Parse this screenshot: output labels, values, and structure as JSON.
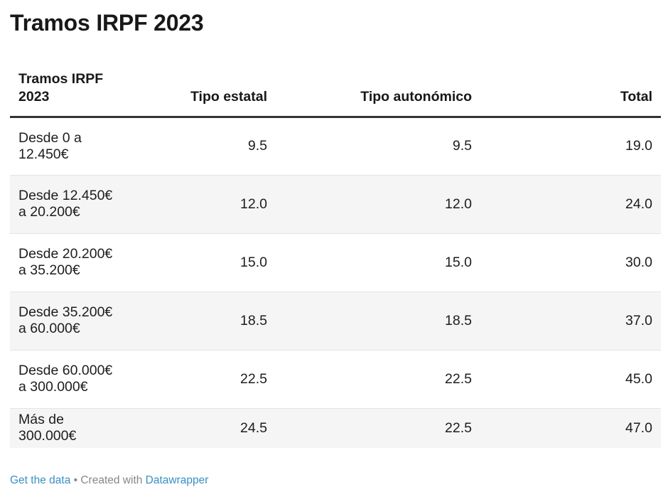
{
  "title": "Tramos IRPF 2023",
  "chart_data": {
    "type": "table",
    "title": "Tramos IRPF 2023",
    "columns": [
      "Tramos IRPF 2023",
      "Tipo estatal",
      "Tipo autonómico",
      "Total"
    ],
    "rows": [
      {
        "tramo": "Desde 0 a 12.450€",
        "estatal": "9.5",
        "autonomico": "9.5",
        "total": "19.0"
      },
      {
        "tramo": "Desde 12.450€ a 20.200€",
        "estatal": "12.0",
        "autonomico": "12.0",
        "total": "24.0"
      },
      {
        "tramo": "Desde 20.200€ a 35.200€",
        "estatal": "15.0",
        "autonomico": "15.0",
        "total": "30.0"
      },
      {
        "tramo": "Desde 35.200€ a 60.000€",
        "estatal": "18.5",
        "autonomico": "18.5",
        "total": "37.0"
      },
      {
        "tramo": "Desde 60.000€ a 300.000€",
        "estatal": "22.5",
        "autonomico": "22.5",
        "total": "45.0"
      },
      {
        "tramo": "Más de 300.000€",
        "estatal": "24.5",
        "autonomico": "22.5",
        "total": "47.0"
      }
    ]
  },
  "footer": {
    "get_data": "Get the data",
    "separator": " • Created with ",
    "datawrapper": "Datawrapper"
  },
  "colors": {
    "header_rule": "#333333",
    "stripe": "#f5f5f5",
    "link": "#3a8fc4"
  }
}
